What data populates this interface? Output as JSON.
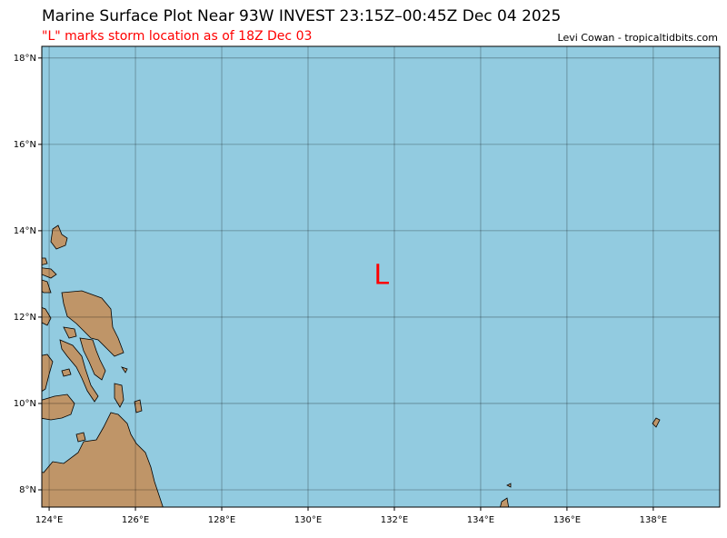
{
  "title": "Marine Surface Plot Near 93W INVEST 23:15Z–00:45Z Dec 04 2025",
  "subtitle": "\"L\" marks storm location as of 18Z Dec 03",
  "credit": "Levi Cowan - tropicaltidbits.com",
  "map": {
    "xlim": [
      123.83,
      139.54
    ],
    "ylim": [
      7.6,
      18.27
    ],
    "xticks": [
      {
        "value": 124,
        "label": "124°E"
      },
      {
        "value": 126,
        "label": "126°E"
      },
      {
        "value": 128,
        "label": "128°E"
      },
      {
        "value": 130,
        "label": "130°E"
      },
      {
        "value": 132,
        "label": "132°E"
      },
      {
        "value": 134,
        "label": "134°E"
      },
      {
        "value": 136,
        "label": "136°E"
      },
      {
        "value": 138,
        "label": "138°E"
      }
    ],
    "yticks": [
      {
        "value": 8,
        "label": "8°N"
      },
      {
        "value": 10,
        "label": "10°N"
      },
      {
        "value": 12,
        "label": "12°N"
      },
      {
        "value": 14,
        "label": "14°N"
      },
      {
        "value": 16,
        "label": "16°N"
      },
      {
        "value": 18,
        "label": "18°N"
      }
    ],
    "grid": true,
    "storm": {
      "label": "L",
      "lon": 131.7,
      "lat": 12.95,
      "color": "#ff0000"
    }
  }
}
